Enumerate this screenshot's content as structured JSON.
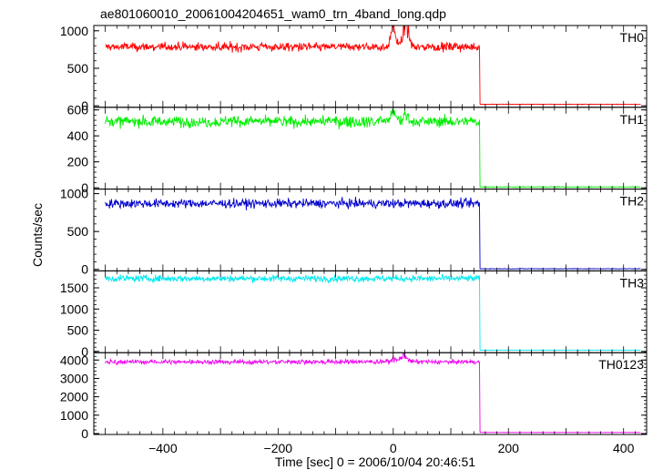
{
  "title": "ae801060010_20061004204651_wam0_trn_4band_long.qdp",
  "xlabel": "Time [sec] 0 = 2006/10/04 20:46:51",
  "ylabel": "Counts/sec",
  "chart_data": {
    "type": "line",
    "title": "ae801060010_20061004204651_wam0_trn_4band_long.qdp",
    "xlabel": "Time [sec] 0 = 2006/10/04 20:46:51",
    "ylabel": "Counts/sec",
    "xlim": [
      -520,
      440
    ],
    "xticks": [
      -400,
      -200,
      0,
      200,
      400
    ],
    "x_start": -500,
    "x_drop": 150,
    "x_end": 430,
    "grid": false,
    "panels": [
      {
        "name": "TH0",
        "color": "#ff0000",
        "ylim": [
          -20,
          1070
        ],
        "yticks": [
          0,
          500,
          1000
        ],
        "level": 785,
        "noise": 30,
        "after": 20,
        "flare": [
          {
            "x": 0,
            "amp": 260,
            "w": 6
          },
          {
            "x": 22,
            "amp": 300,
            "w": 7
          }
        ]
      },
      {
        "name": "TH1",
        "color": "#00ee00",
        "ylim": [
          -10,
          620
        ],
        "yticks": [
          0,
          200,
          400,
          600
        ],
        "level": 510,
        "noise": 22,
        "after": 6,
        "flare": [
          {
            "x": 0,
            "amp": 70,
            "w": 6
          },
          {
            "x": 22,
            "amp": 50,
            "w": 6
          }
        ]
      },
      {
        "name": "TH2",
        "color": "#0000cc",
        "ylim": [
          -20,
          1060
        ],
        "yticks": [
          0,
          500,
          1000
        ],
        "level": 870,
        "noise": 30,
        "after": 8,
        "flare": []
      },
      {
        "name": "TH3",
        "color": "#00e8f0",
        "ylim": [
          -30,
          1900
        ],
        "yticks": [
          0,
          500,
          1000,
          1500
        ],
        "level": 1720,
        "noise": 40,
        "after": 30,
        "flare": []
      },
      {
        "name": "TH0123",
        "color": "#ee00ee",
        "ylim": [
          -50,
          4400
        ],
        "yticks": [
          0,
          1000,
          2000,
          3000,
          4000
        ],
        "level": 3900,
        "noise": 60,
        "after": 60,
        "flare": [
          {
            "x": 0,
            "amp": 150,
            "w": 6
          },
          {
            "x": 18,
            "amp": 350,
            "w": 8
          }
        ]
      }
    ]
  }
}
